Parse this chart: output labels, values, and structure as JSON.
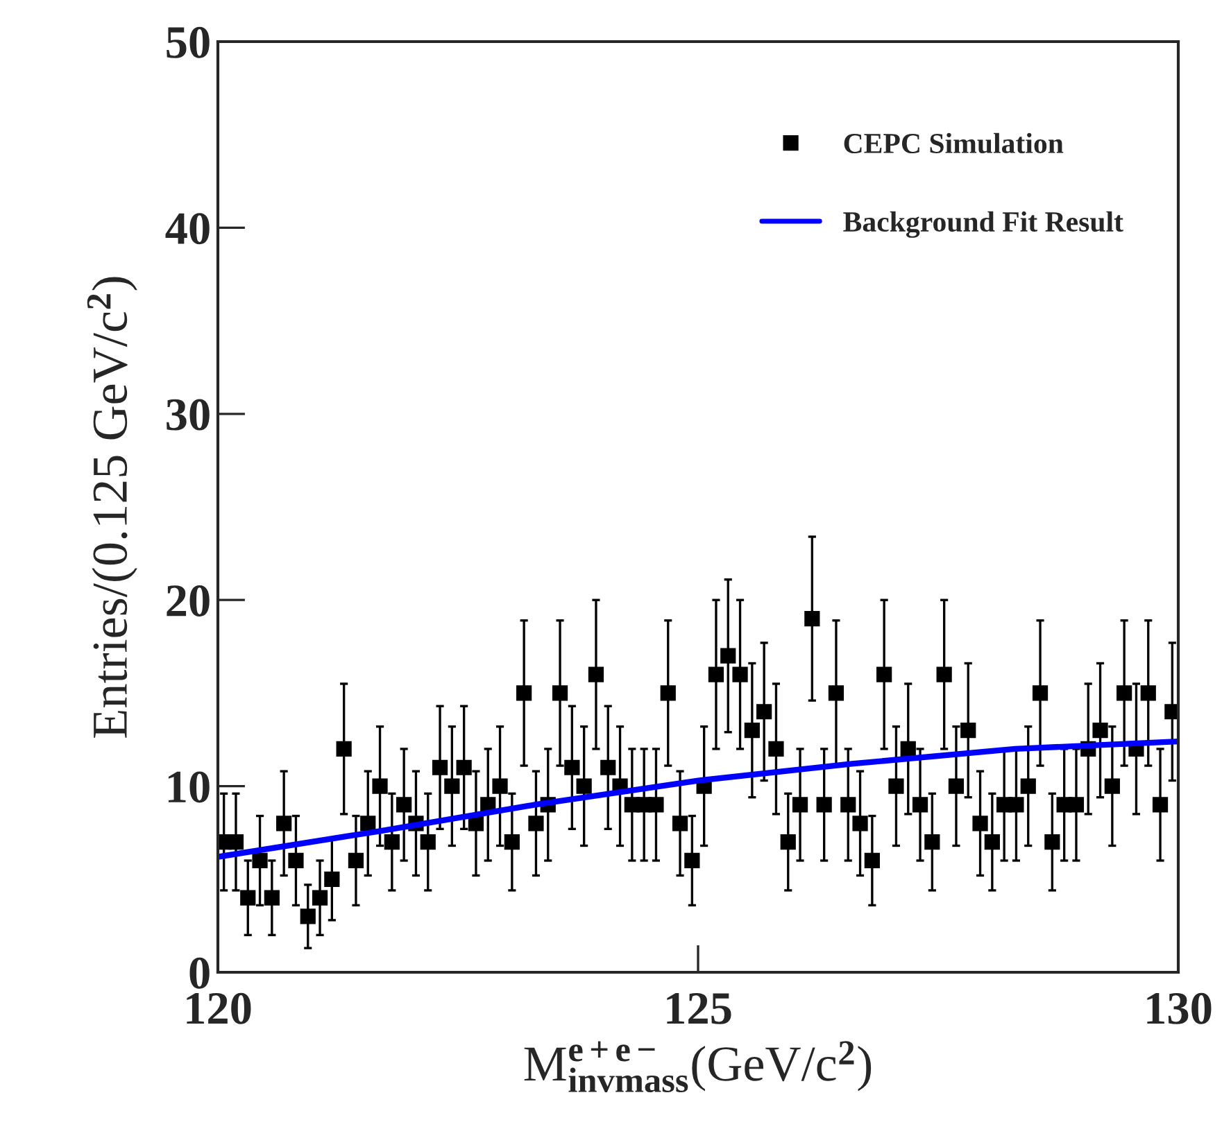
{
  "chart_data": {
    "type": "scatter",
    "xlabel": "M$^{e+e−}$$_{invmass}$(GeV/c$^{2}$)",
    "ylabel": "Entries/(0.125 GeV/c$^{2}$)",
    "xlim": [
      120,
      130
    ],
    "xticks": [
      120,
      125,
      130
    ],
    "ylim": [
      0,
      50
    ],
    "yticks": [
      0,
      10,
      20,
      30,
      40,
      50
    ],
    "legend": "top right",
    "grid": false,
    "series": [
      {
        "name": "CEPC Simulation",
        "marker": "square",
        "color": "#000000",
        "x": [
          120.0625,
          120.1875,
          120.3125,
          120.4375,
          120.5625,
          120.6875,
          120.8125,
          120.9375,
          121.0625,
          121.1875,
          121.3125,
          121.4375,
          121.5625,
          121.6875,
          121.8125,
          121.9375,
          122.0625,
          122.1875,
          122.3125,
          122.4375,
          122.5625,
          122.6875,
          122.8125,
          122.9375,
          123.0625,
          123.1875,
          123.3125,
          123.4375,
          123.5625,
          123.6875,
          123.8125,
          123.9375,
          124.0625,
          124.1875,
          124.3125,
          124.4375,
          124.5625,
          124.6875,
          124.8125,
          124.9375,
          125.0625,
          125.1875,
          125.3125,
          125.4375,
          125.5625,
          125.6875,
          125.8125,
          125.9375,
          126.0625,
          126.1875,
          126.3125,
          126.4375,
          126.5625,
          126.6875,
          126.8125,
          126.9375,
          127.0625,
          127.1875,
          127.3125,
          127.4375,
          127.5625,
          127.6875,
          127.8125,
          127.9375,
          128.0625,
          128.1875,
          128.3125,
          128.4375,
          128.5625,
          128.6875,
          128.8125,
          128.9375,
          129.0625,
          129.1875,
          129.3125,
          129.4375,
          129.5625,
          129.6875,
          129.8125,
          129.9375
        ],
        "values": [
          7,
          7,
          4,
          6,
          4,
          8,
          6,
          3,
          4,
          5,
          12,
          6,
          8,
          10,
          7,
          9,
          8,
          7,
          11,
          10,
          11,
          8,
          9,
          10,
          7,
          15,
          8,
          9,
          15,
          11,
          10,
          16,
          11,
          10,
          9,
          9,
          9,
          15,
          8,
          6,
          10,
          16,
          17,
          16,
          13,
          14,
          12,
          7,
          9,
          19,
          9,
          15,
          9,
          8,
          6,
          16,
          10,
          12,
          9,
          7,
          16,
          10,
          13,
          8,
          7,
          9,
          9,
          10,
          15,
          7,
          9,
          9,
          12,
          13,
          10,
          15,
          12,
          15,
          9,
          14
        ],
        "errors": [
          2.6,
          2.6,
          2,
          2.4,
          2,
          2.8,
          2.4,
          1.7,
          2,
          2.2,
          3.5,
          2.4,
          2.8,
          3.2,
          2.6,
          3,
          2.8,
          2.6,
          3.3,
          3.2,
          3.3,
          2.8,
          3,
          3.2,
          2.6,
          3.9,
          2.8,
          3,
          3.9,
          3.3,
          3.2,
          4,
          3.3,
          3.2,
          3,
          3,
          3,
          3.9,
          2.8,
          2.4,
          3.2,
          4,
          4.1,
          4,
          3.6,
          3.7,
          3.5,
          2.6,
          3,
          4.4,
          3,
          3.9,
          3,
          2.8,
          2.4,
          4,
          3.2,
          3.5,
          3,
          2.6,
          4,
          3.2,
          3.6,
          2.8,
          2.6,
          3,
          3,
          3.2,
          3.9,
          2.6,
          3,
          3,
          3.5,
          3.6,
          3.2,
          3.9,
          3.5,
          3.9,
          3,
          3.7
        ]
      },
      {
        "name": "Background Fit Result",
        "type": "line",
        "color": "#0000ff",
        "line_style": "solid",
        "marker": "none",
        "x": [
          120,
          121.7,
          123.3,
          125,
          126.6,
          128.3,
          130
        ],
        "values": [
          6.2,
          7.6,
          9.0,
          10.3,
          11.2,
          12.0,
          12.4
        ]
      }
    ]
  }
}
